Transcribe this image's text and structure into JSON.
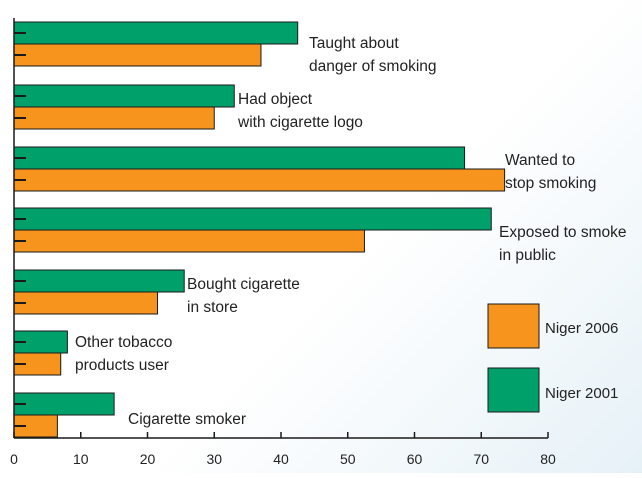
{
  "chart_data": {
    "type": "bar",
    "orientation": "horizontal",
    "categories": [
      "Taught about danger of smoking",
      "Had object with cigarette logo",
      "Wanted to stop smoking",
      "Exposed to smoke in public",
      "Bought cigarette in store",
      "Other tobacco products user",
      "Cigarette smoker"
    ],
    "category_label_lines": [
      [
        "Taught about",
        "danger of smoking"
      ],
      [
        "Had object",
        "with cigarette logo"
      ],
      [
        "Wanted to",
        "stop smoking"
      ],
      [
        "Exposed to smoke",
        "in public"
      ],
      [
        "Bought cigarette",
        "in store"
      ],
      [
        "Other tobacco",
        "products user"
      ],
      [
        "Cigarette smoker"
      ]
    ],
    "series": [
      {
        "name": "Niger 2001",
        "color": "#00a06b",
        "values": [
          42.5,
          33,
          67.5,
          71.5,
          25.5,
          8,
          15
        ]
      },
      {
        "name": "Niger 2006",
        "color": "#f7941d",
        "values": [
          37,
          30,
          73.5,
          52.5,
          21.5,
          7,
          6.5
        ]
      }
    ],
    "xlim": [
      0,
      80
    ],
    "xticks": [
      "0",
      "10",
      "20",
      "30",
      "40",
      "50",
      "60",
      "70",
      "80"
    ],
    "xlabel": "",
    "ylabel": "",
    "grid": false,
    "legend_position": "right",
    "legend_order": [
      "Niger 2006",
      "Niger 2001"
    ]
  }
}
